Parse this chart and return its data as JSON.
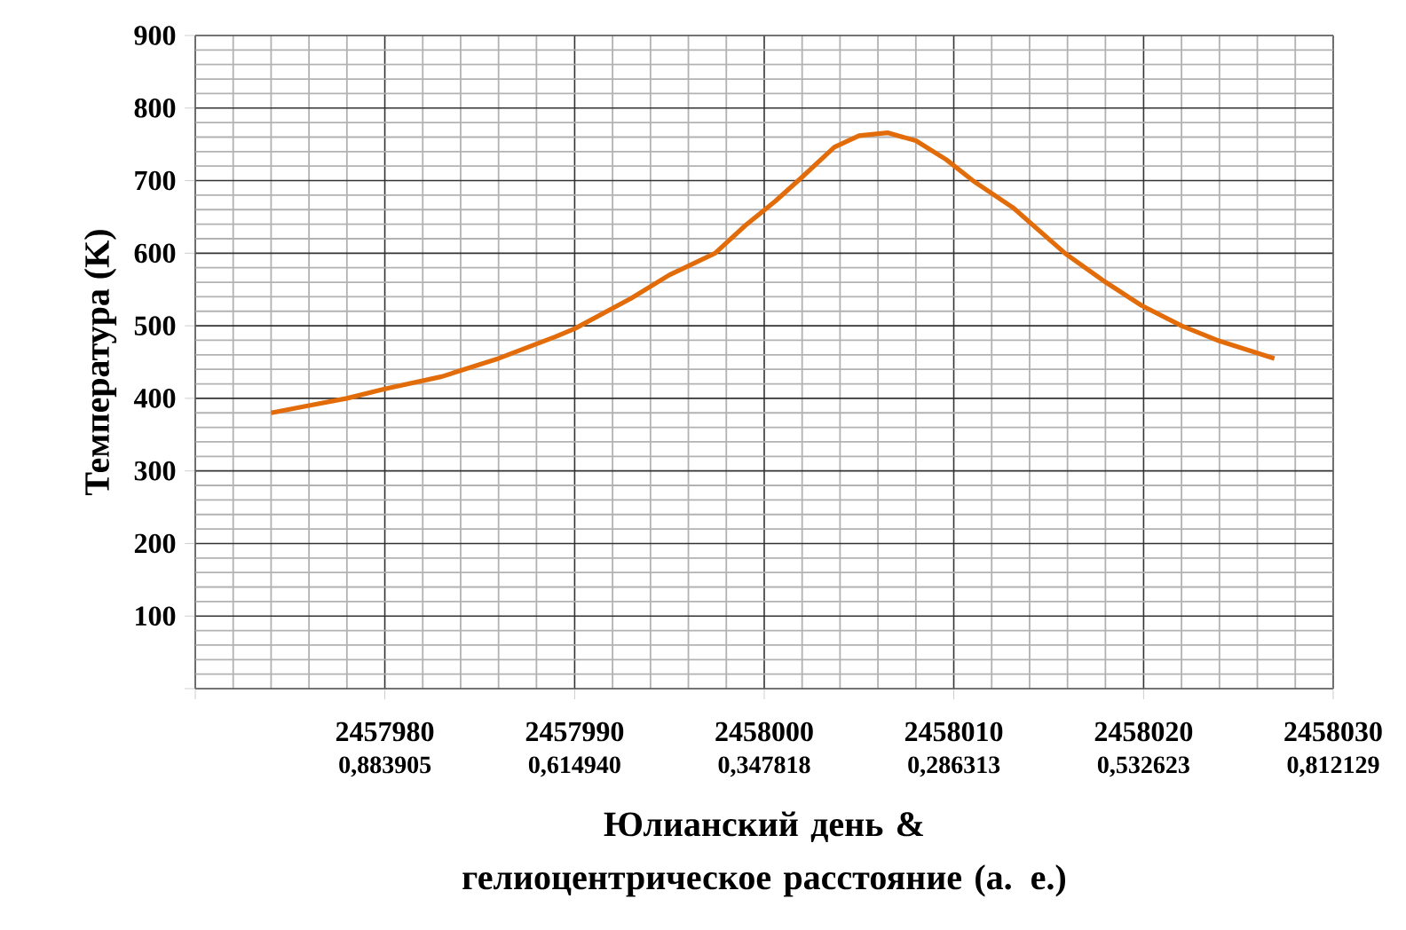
{
  "chart_data": {
    "type": "line",
    "ylabel": "Температура (K)",
    "xlabel": "Юлианский день & гелиоцентрическое расстояние (а. е.)",
    "xlim": [
      2457970,
      2458030
    ],
    "xticks": [
      {
        "value": 2457970,
        "label": null
      },
      2457980,
      2457990,
      2458000,
      2458010,
      2458020,
      2458030
    ],
    "annotations": [
      "0,883905",
      "0,614940",
      "0,347818",
      "0,286313",
      "0,532623",
      "0,812129"
    ],
    "ylim": [
      0,
      900
    ],
    "yticks": [
      {
        "value": 0,
        "label": null
      },
      100,
      200,
      300,
      400,
      500,
      600,
      700,
      800,
      900
    ],
    "grid": true,
    "marker": "none",
    "line_style": "solid",
    "x": [
      2457974,
      2457976,
      2457978,
      2457980,
      2457983,
      2457986,
      2457989,
      2457990,
      2457993,
      2457995,
      2457997.4,
      2457999,
      2458000.6,
      2458002,
      2458003.7,
      2458005,
      2458006.5,
      2458008,
      2458009.6,
      2458011,
      2458013.1,
      2458015.9,
      2458018,
      2458019.9,
      2458022,
      2458024,
      2458026.9
    ],
    "series": [
      {
        "color": "#e36c0a",
        "values": [
          380,
          390,
          400,
          413,
          430,
          455,
          485,
          496,
          538,
          570,
          600,
          638,
          672,
          705,
          746,
          762,
          766,
          755,
          729,
          700,
          663,
          599,
          560,
          528,
          500,
          479,
          455
        ]
      }
    ]
  }
}
